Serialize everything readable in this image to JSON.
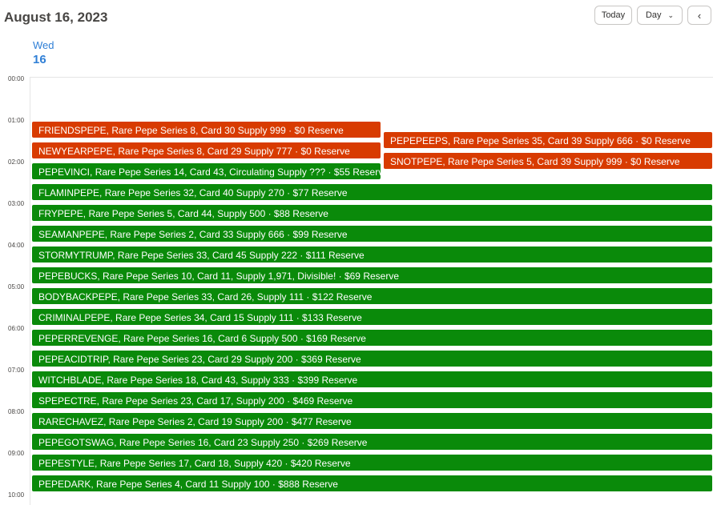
{
  "header": {
    "date_title": "August 16, 2023",
    "today_label": "Today",
    "view_label": "Day",
    "prev_icon": "chevron-left-icon"
  },
  "day": {
    "name": "Wed",
    "number": "16"
  },
  "hours": [
    "00:00",
    "01:00",
    "02:00",
    "03:00",
    "04:00",
    "05:00",
    "06:00",
    "07:00",
    "08:00",
    "09:00",
    "10:00"
  ],
  "colors": {
    "orange": "#d83b01",
    "green": "#0a8a0a",
    "accent": "#2f7fd6"
  },
  "events": [
    {
      "text": "FRIENDSPEPE, Rare Pepe Series 8, Card 30 Supply 999 · $0 Reserve",
      "color": "orange"
    },
    {
      "text": "PEPEPEEPS, Rare Pepe Series 35, Card 39 Supply 666 · $0 Reserve",
      "color": "orange"
    },
    {
      "text": "NEWYEARPEPE, Rare Pepe Series 8, Card 29 Supply 777 · $0 Reserve",
      "color": "orange"
    },
    {
      "text": "SNOTPEPE, Rare Pepe Series 5, Card 39 Supply 999 · $0 Reserve",
      "color": "orange"
    },
    {
      "text": "PEPEVINCI, Rare Pepe Series 14, Card 43, Circulating Supply ??? · $55 Reserve",
      "color": "green"
    },
    {
      "text": "FLAMINPEPE, Rare Pepe Series 32, Card 40 Supply 270 · $77 Reserve",
      "color": "green"
    },
    {
      "text": "FRYPEPE, Rare Pepe Series 5, Card 44, Supply 500 · $88 Reserve",
      "color": "green"
    },
    {
      "text": "SEAMANPEPE, Rare Pepe Series 2, Card 33 Supply 666 · $99 Reserve",
      "color": "green"
    },
    {
      "text": "STORMYTRUMP, Rare Pepe Series 33, Card 45 Supply 222 · $111 Reserve",
      "color": "green"
    },
    {
      "text": "PEPEBUCKS, Rare Pepe Series 10, Card 11, Supply 1,971, Divisible! · $69 Reserve",
      "color": "green"
    },
    {
      "text": "BODYBACKPEPE, Rare Pepe Series 33, Card 26, Supply 111  · $122 Reserve",
      "color": "green"
    },
    {
      "text": "CRIMINALPEPE, Rare Pepe Series 34, Card 15 Supply 111 · $133 Reserve",
      "color": "green"
    },
    {
      "text": "PEPERREVENGE, Rare Pepe Series 16, Card 6 Supply 500 · $169 Reserve",
      "color": "green"
    },
    {
      "text": "PEPEACIDTRIP, Rare Pepe Series 23, Card 29 Supply 200 · $369 Reserve",
      "color": "green"
    },
    {
      "text": "WITCHBLADE, Rare Pepe Series 18, Card 43, Supply 333  · $399 Reserve",
      "color": "green"
    },
    {
      "text": "SPEPECTRE, Rare Pepe Series 23, Card 17, Supply 200  · $469 Reserve",
      "color": "green"
    },
    {
      "text": "RARECHAVEZ, Rare Pepe Series 2, Card 19 Supply 200 · $477 Reserve",
      "color": "green"
    },
    {
      "text": "PEPEGOTSWAG, Rare Pepe Series 16, Card 23 Supply 250 · $269 Reserve",
      "color": "green"
    },
    {
      "text": "PEPESTYLE, Rare Pepe Series 17, Card 18, Supply 420 · $420 Reserve",
      "color": "green"
    },
    {
      "text": "PEPEDARK, Rare Pepe Series 4, Card 11 Supply 100 · $888 Reserve",
      "color": "green"
    }
  ]
}
